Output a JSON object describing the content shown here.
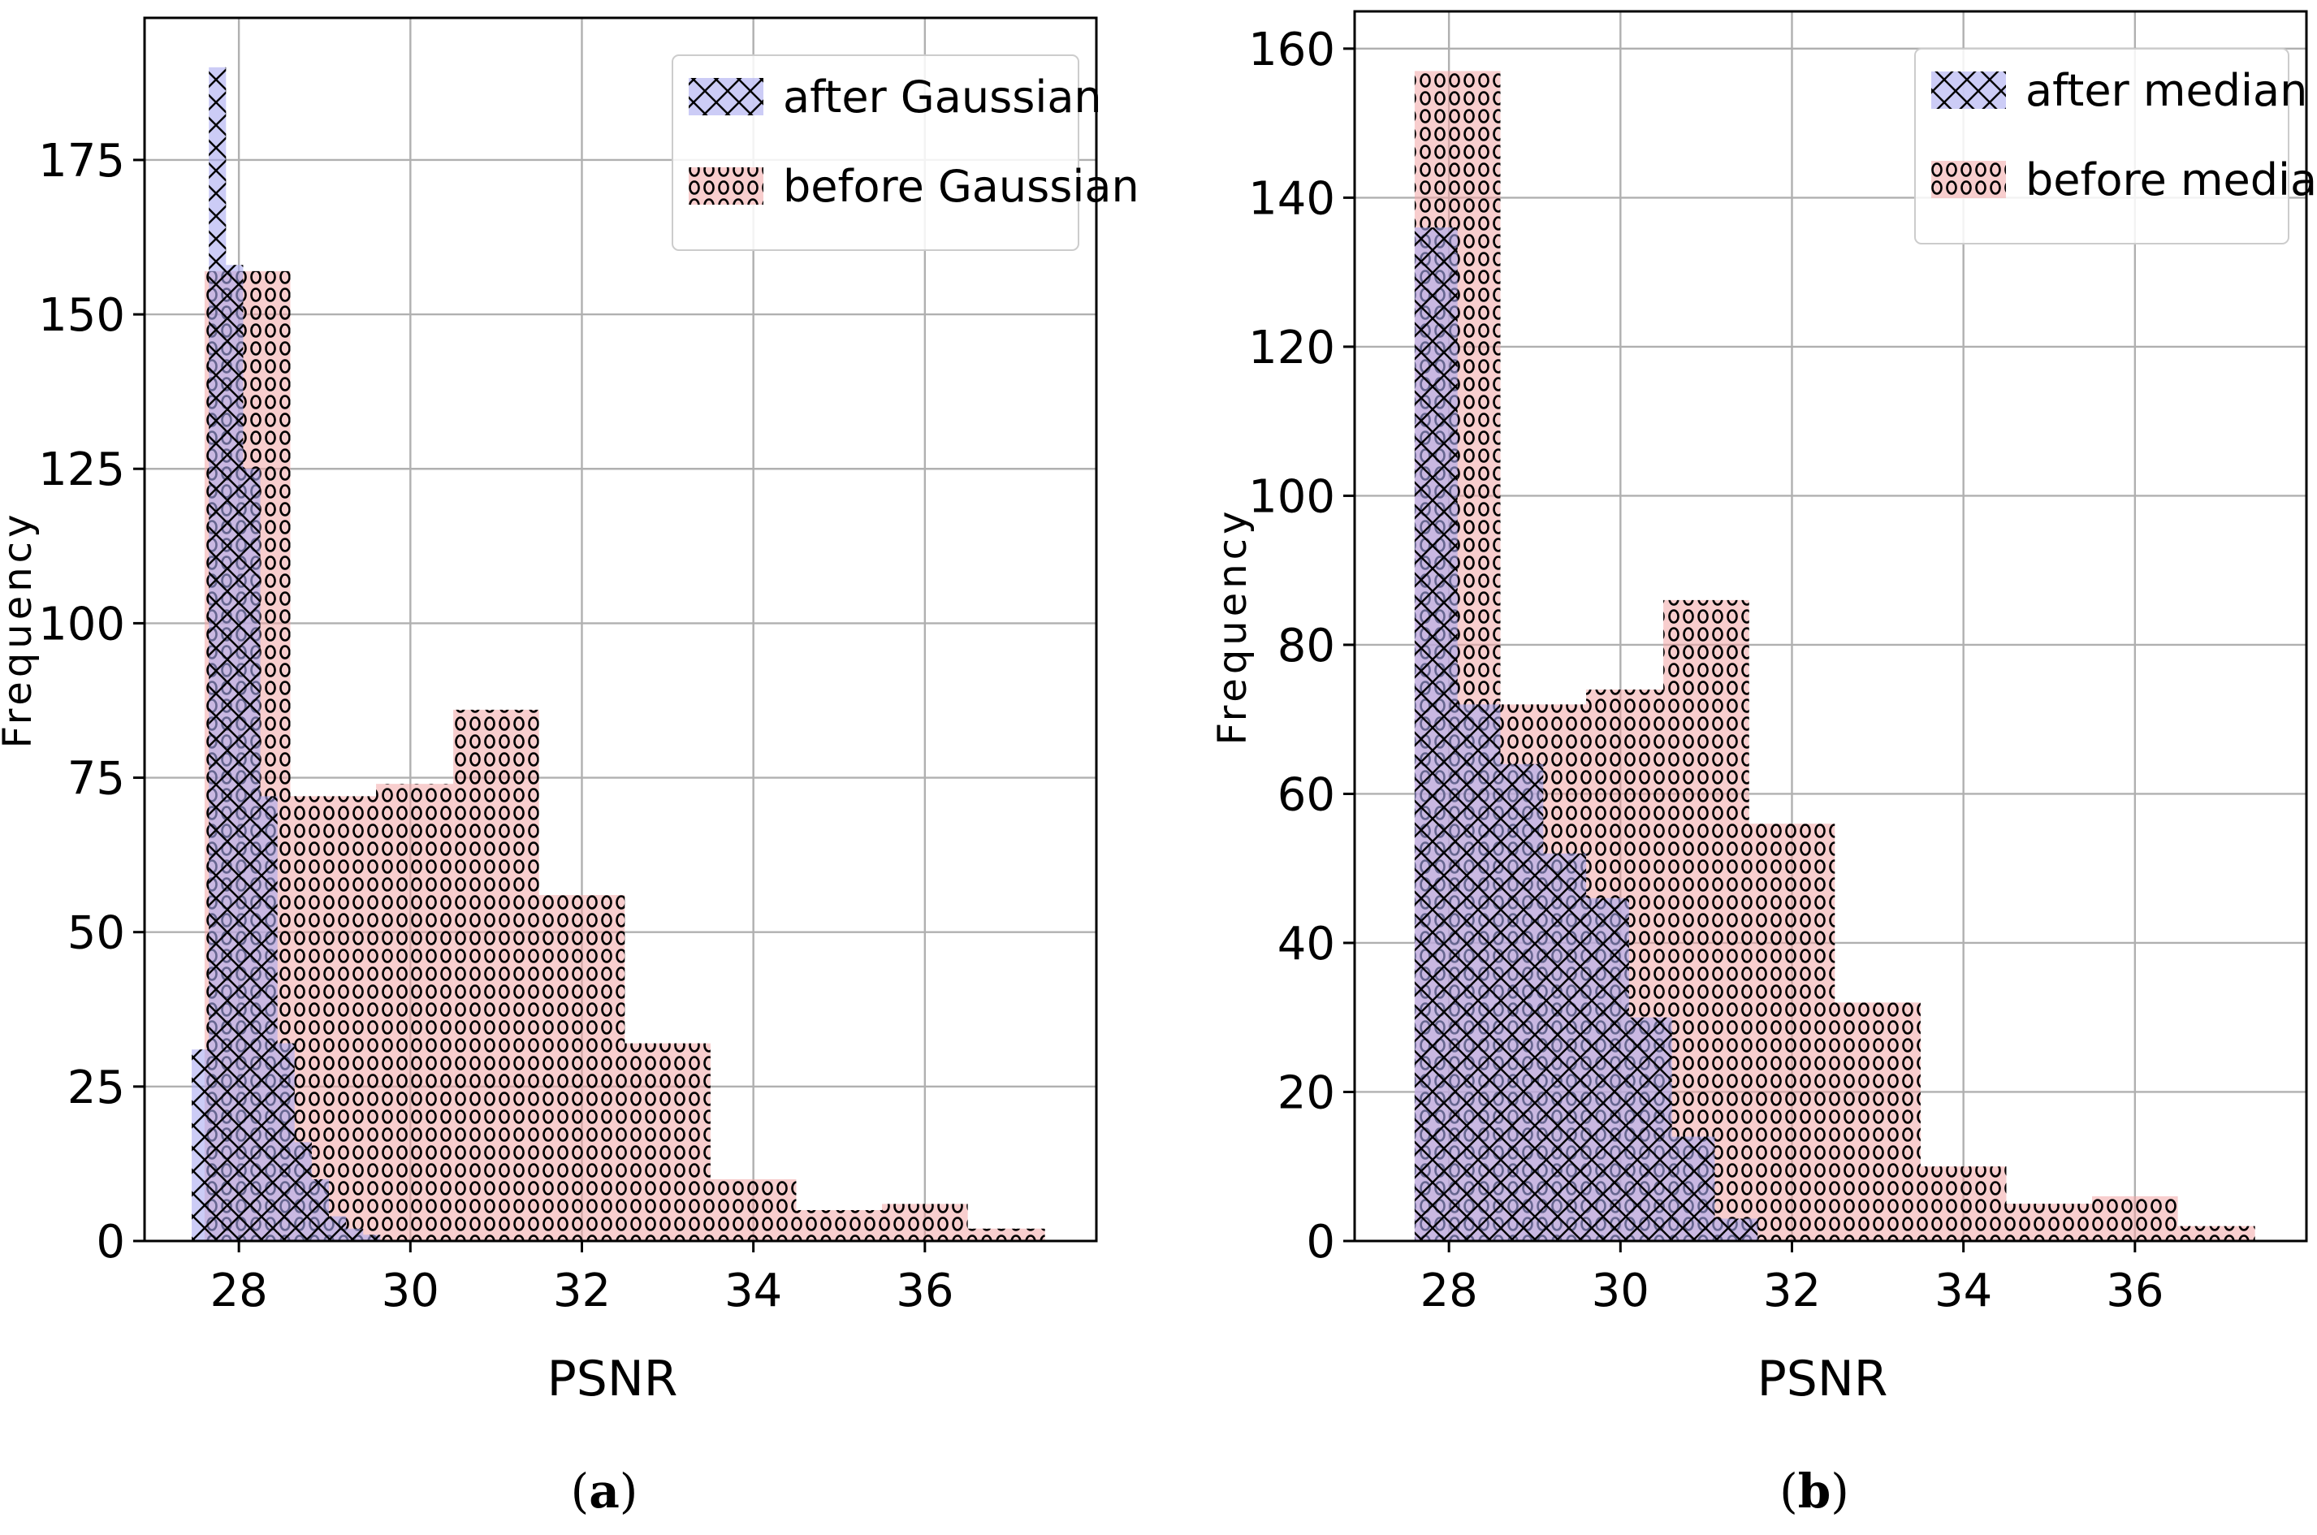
{
  "colors": {
    "after": "#aaaaf0",
    "before": "#f2a6a6",
    "edge": "#000000",
    "grid": "#b0b0b0"
  },
  "chart_data": [
    {
      "type": "histogram",
      "panel_label": "a",
      "xlabel": "PSNR",
      "ylabel": "Frequency",
      "xlim": [
        26.9,
        38.0
      ],
      "ylim": [
        0,
        198
      ],
      "xticks": [
        28,
        30,
        32,
        34,
        36
      ],
      "yticks": [
        0,
        25,
        50,
        75,
        100,
        125,
        150,
        175
      ],
      "grid": true,
      "legend_position": "top-right",
      "series": [
        {
          "name": "after Gaussian",
          "hatch": "cross-x",
          "bin_edges": [
            27.45,
            27.65,
            27.85,
            28.05,
            28.25,
            28.45,
            28.65,
            28.85,
            29.05,
            29.25,
            29.45,
            29.65
          ],
          "values": [
            31,
            190,
            158,
            125,
            72,
            32,
            16,
            10,
            4,
            2,
            1
          ]
        },
        {
          "name": "before Gaussian",
          "hatch": "circles",
          "bin_edges": [
            27.6,
            28.6,
            29.6,
            30.5,
            31.5,
            32.5,
            33.5,
            34.5,
            35.5,
            36.5,
            37.4
          ],
          "values": [
            157,
            72,
            74,
            86,
            56,
            32,
            10,
            5,
            6,
            2
          ]
        }
      ]
    },
    {
      "type": "histogram",
      "panel_label": "b",
      "xlabel": "PSNR",
      "ylabel": "Frequency",
      "xlim": [
        26.9,
        38.0
      ],
      "ylim": [
        0,
        165
      ],
      "xticks": [
        28,
        30,
        32,
        34,
        36
      ],
      "yticks": [
        0,
        20,
        40,
        60,
        80,
        100,
        120,
        140,
        160
      ],
      "grid": true,
      "legend_position": "top-right",
      "series": [
        {
          "name": "after median",
          "hatch": "cross-x",
          "bin_edges": [
            27.6,
            28.1,
            28.6,
            29.1,
            29.6,
            30.1,
            30.6,
            31.1,
            31.6
          ],
          "values": [
            136,
            72,
            64,
            52,
            46,
            30,
            14,
            3
          ]
        },
        {
          "name": "before median",
          "hatch": "circles",
          "bin_edges": [
            27.6,
            28.6,
            29.6,
            30.5,
            31.5,
            32.5,
            33.5,
            34.5,
            35.5,
            36.5,
            37.4
          ],
          "values": [
            157,
            72,
            74,
            86,
            56,
            32,
            10,
            5,
            6,
            2
          ]
        }
      ]
    }
  ]
}
